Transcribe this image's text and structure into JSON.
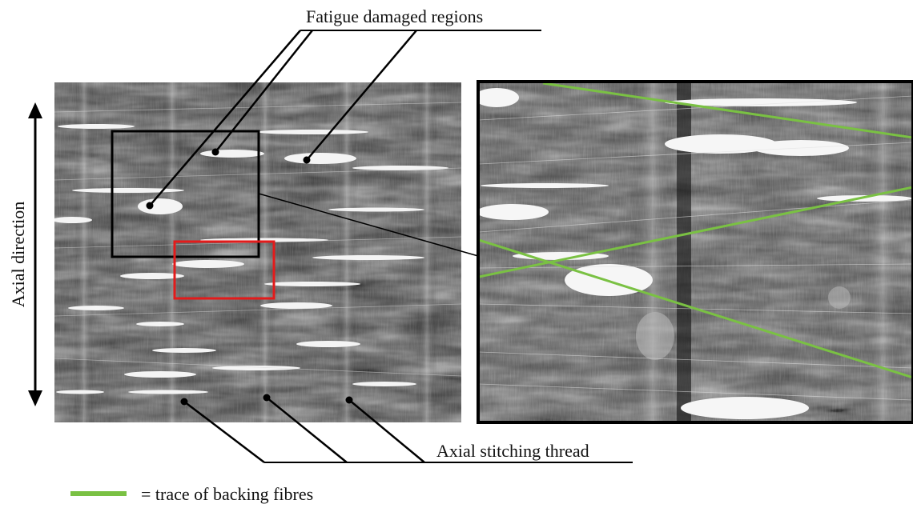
{
  "labels": {
    "fatigue": "Fatigue damaged regions",
    "axial_direction": "Axial direction",
    "stitching": "Axial stitching thread",
    "legend": "= trace of backing fibres"
  },
  "colors": {
    "green_trace": "#7ac143",
    "black_box": "#111111",
    "red_box": "#e31b1b",
    "background": "#ffffff"
  }
}
